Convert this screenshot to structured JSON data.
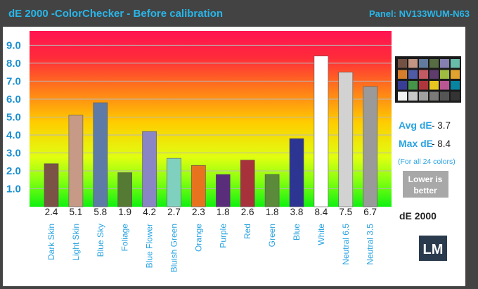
{
  "header": {
    "title": "dE 2000 -ColorChecker  - Before calibration",
    "panel": "Panel: NV133WUM-N63"
  },
  "stats": {
    "avg_label": "Avg dE",
    "avg_value": "- 3.7",
    "max_label": "Max dE",
    "max_value": "- 8.4",
    "note": "(For all 24 colors)",
    "lower_line1": "Lower is",
    "lower_line2": "better",
    "unit": "dE 2000"
  },
  "logo": {
    "text": "LM"
  },
  "colorchecker_swatches": [
    "#735244",
    "#c29682",
    "#627a9d",
    "#576c43",
    "#8580b1",
    "#67bdaa",
    "#d67e2c",
    "#505ba6",
    "#c15a63",
    "#5e3c6c",
    "#9dbc40",
    "#e0a32e",
    "#383d96",
    "#469449",
    "#af363c",
    "#e7c71f",
    "#bb5695",
    "#0885a1",
    "#f3f3f2",
    "#c8c8c8",
    "#a0a0a0",
    "#7a7a79",
    "#555555",
    "#343434"
  ],
  "chart_data": {
    "type": "bar",
    "title": "dE 2000 -ColorChecker  - Before calibration",
    "xlabel": "",
    "ylabel": "",
    "ylim": [
      0,
      9.8
    ],
    "yticks": [
      1.0,
      2.0,
      3.0,
      4.0,
      5.0,
      6.0,
      7.0,
      8.0,
      9.0
    ],
    "ytick_labels": [
      "1.0",
      "2.0",
      "3.0",
      "4.0",
      "5.0",
      "6.0",
      "7.0",
      "8.0",
      "9.0"
    ],
    "grid": true,
    "categories": [
      "Dark Skin",
      "Light Skin",
      "Blue Sky",
      "Foliage",
      "Blue Flower",
      "Bluish Green",
      "Orange",
      "Purple",
      "Red",
      "Green",
      "Blue",
      "White",
      "Neutral 6.5",
      "Neutral 3.5"
    ],
    "values": [
      2.4,
      5.1,
      5.8,
      1.9,
      4.2,
      2.7,
      2.3,
      1.8,
      2.6,
      1.8,
      3.8,
      8.4,
      7.5,
      6.7
    ],
    "value_labels": [
      "2.4",
      "5.1",
      "5.8",
      "1.9",
      "4.2",
      "2.7",
      "2.3",
      "1.8",
      "2.6",
      "1.8",
      "3.8",
      "8.4",
      "7.5",
      "6.7"
    ],
    "colors": [
      "#7a5246",
      "#c69a86",
      "#5e7aa6",
      "#557a33",
      "#8a85c4",
      "#80d0c0",
      "#e8731f",
      "#5a2d7a",
      "#a8323c",
      "#5b8a3a",
      "#2c3692",
      "#ffffff",
      "#d2d2d2",
      "#9a9a9a"
    ]
  }
}
